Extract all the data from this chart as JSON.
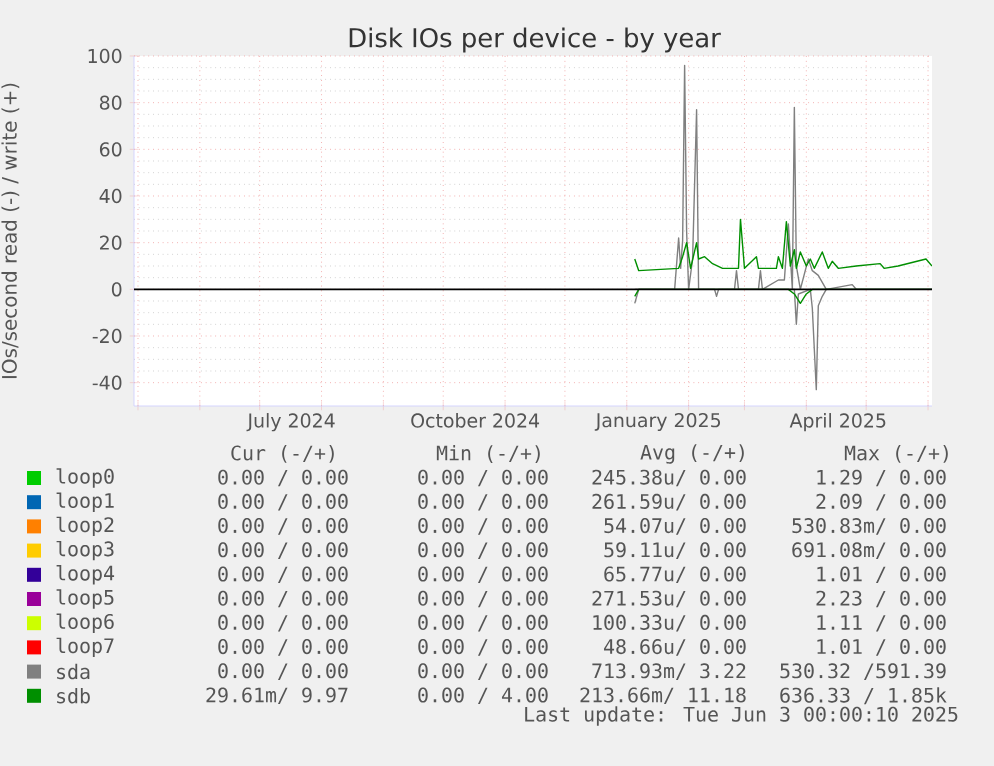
{
  "chart_data": {
    "type": "line",
    "title": "Disk IOs per device - by year",
    "ylabel": "IOs/second read (-) / write (+)",
    "xlim": [
      "2024-04-29",
      "2025-06-03"
    ],
    "ylim": [
      -50,
      100
    ],
    "yticks": [
      -40,
      -20,
      0,
      20,
      40,
      60,
      80,
      100
    ],
    "xticks": [
      {
        "value": "2024-05-01",
        "label": null
      },
      {
        "value": "2024-06-01",
        "label": null
      },
      {
        "value": "2024-07-01",
        "label": null
      },
      {
        "value": "2024-08-01",
        "label": null
      },
      {
        "value": "2024-09-01",
        "label": null
      },
      {
        "value": "2024-10-01",
        "label": null
      },
      {
        "value": "2024-11-01",
        "label": null
      },
      {
        "value": "2024-12-01",
        "label": null
      },
      {
        "value": "2025-01-01",
        "label": null
      },
      {
        "value": "2025-02-01",
        "label": null
      },
      {
        "value": "2025-03-01",
        "label": null
      },
      {
        "value": "2025-04-01",
        "label": null
      },
      {
        "value": "2025-05-01",
        "label": null
      },
      {
        "value": "2025-06-01",
        "label": null
      },
      {
        "value": "2024-07-17",
        "label": "July 2024"
      },
      {
        "value": "2024-10-17",
        "label": "October 2024"
      },
      {
        "value": "2025-01-17",
        "label": "January 2025"
      },
      {
        "value": "2025-04-17",
        "label": "April 2025"
      }
    ],
    "grid": true,
    "legend": "bottom",
    "ref_lines": [
      {
        "axis": "y",
        "value": 0,
        "color": "#000000"
      }
    ],
    "series": [
      {
        "name": "loop0",
        "color": "#00cc00",
        "values": [
          null
        ]
      },
      {
        "name": "loop1",
        "color": "#0066b3",
        "values": [
          null
        ]
      },
      {
        "name": "loop2",
        "color": "#ff8000",
        "values": [
          null
        ]
      },
      {
        "name": "loop3",
        "color": "#ffcc00",
        "values": [
          null
        ]
      },
      {
        "name": "loop4",
        "color": "#330099",
        "values": [
          null
        ]
      },
      {
        "name": "loop5",
        "color": "#990099",
        "values": [
          null
        ]
      },
      {
        "name": "loop6",
        "color": "#ccff00",
        "values": [
          null
        ]
      },
      {
        "name": "loop7",
        "color": "#ff0000",
        "values": [
          null
        ]
      },
      {
        "name": "sda",
        "color": "#808080",
        "x": [
          "2025-01-05",
          "2025-01-25",
          "2025-01-27",
          "2025-01-28",
          "2025-01-29",
          "2025-01-30",
          "2025-01-31",
          "2025-02-01",
          "2025-02-03",
          "2025-02-05",
          "2025-02-06",
          "2025-02-24",
          "2025-02-25",
          "2025-02-26",
          "2025-03-08",
          "2025-03-09",
          "2025-03-10",
          "2025-03-18",
          "2025-03-21",
          "2025-03-23",
          "2025-03-25",
          "2025-03-26",
          "2025-03-27",
          "2025-03-29",
          "2025-04-02",
          "2025-04-04",
          "2025-04-07",
          "2025-04-11",
          "2025-04-24",
          "2025-04-26",
          "2025-06-03"
        ],
        "values": [
          0,
          0,
          22,
          9,
          21,
          96,
          25,
          0,
          13,
          77,
          0,
          0,
          8,
          0,
          0,
          8,
          0,
          4,
          4,
          28,
          0,
          78,
          10,
          0,
          13,
          8,
          6,
          0,
          2,
          0,
          0
        ]
      },
      {
        "color": "#808080",
        "x": [
          "2025-01-05",
          "2025-01-07",
          "2025-02-14",
          "2025-02-15",
          "2025-02-16",
          "2025-03-26",
          "2025-03-27",
          "2025-03-28",
          "2025-04-03",
          "2025-04-04",
          "2025-04-06",
          "2025-04-07",
          "2025-04-09",
          "2025-04-11",
          "2025-06-03"
        ],
        "values": [
          -6,
          0,
          0,
          -3,
          0,
          0,
          -15,
          -2,
          0,
          -8,
          -43,
          -7,
          -3,
          0,
          0
        ]
      },
      {
        "name": "sdb",
        "color": "#008f00",
        "x": [
          "2025-01-05",
          "2025-01-07",
          "2025-01-27",
          "2025-01-29",
          "2025-01-31",
          "2025-02-02",
          "2025-02-05",
          "2025-02-06",
          "2025-02-09",
          "2025-02-13",
          "2025-02-18",
          "2025-02-26",
          "2025-02-27",
          "2025-03-01",
          "2025-03-07",
          "2025-03-08",
          "2025-03-17",
          "2025-03-18",
          "2025-03-20",
          "2025-03-22",
          "2025-03-24",
          "2025-03-26",
          "2025-03-27",
          "2025-03-29",
          "2025-04-01",
          "2025-04-03",
          "2025-04-05",
          "2025-04-09",
          "2025-04-12",
          "2025-04-14",
          "2025-04-17",
          "2025-04-26",
          "2025-05-08",
          "2025-05-10",
          "2025-05-17",
          "2025-05-31",
          "2025-06-03"
        ],
        "values": [
          13,
          8,
          9,
          14,
          20,
          9,
          20,
          13,
          14,
          11,
          9,
          9,
          30,
          9,
          14,
          9,
          9,
          14,
          9,
          29,
          10,
          17,
          9,
          16,
          10,
          13,
          9,
          16,
          9,
          12,
          9,
          10,
          11,
          9,
          10,
          13,
          10
        ]
      },
      {
        "color": "#008f00",
        "x": [
          "2025-01-05",
          "2025-01-07",
          "2025-03-23",
          "2025-03-26",
          "2025-03-29",
          "2025-04-01",
          "2025-04-04",
          "2025-06-03"
        ],
        "values": [
          -3,
          0,
          0,
          -2,
          -6,
          -2,
          0,
          0
        ]
      }
    ],
    "annotations": [
      "Cur (-/+)",
      "Min (-/+)",
      "Avg (-/+)",
      "Max (-/+)",
      "0.00 / 0.00",
      "0.00 / 0.00",
      "245.38u/ 0.00",
      "1.29 / 0.00",
      "0.00 / 0.00",
      "0.00 / 0.00",
      "261.59u/ 0.00",
      "2.09 / 0.00",
      "0.00 / 0.00",
      "0.00 / 0.00",
      "54.07u/ 0.00",
      "530.83m/ 0.00",
      "0.00 / 0.00",
      "0.00 / 0.00",
      "59.11u/ 0.00",
      "691.08m/ 0.00",
      "0.00 / 0.00",
      "0.00 / 0.00",
      "65.77u/ 0.00",
      "1.01 / 0.00",
      "0.00 / 0.00",
      "0.00 / 0.00",
      "271.53u/ 0.00",
      "2.23 / 0.00",
      "0.00 / 0.00",
      "0.00 / 0.00",
      "100.33u/ 0.00",
      "1.11 / 0.00",
      "0.00 / 0.00",
      "0.00 / 0.00",
      "48.66u/ 0.00",
      "1.01 / 0.00",
      "0.00 / 0.00",
      "0.00 / 0.00",
      "713.93m/ 3.22",
      "530.32 /591.39",
      "29.61m/ 9.97",
      "0.00 / 4.00",
      "213.66m/ 11.18",
      "636.33 / 1.85k",
      "Last update: Tue Jun  3 00:00:10 2025"
    ]
  }
}
